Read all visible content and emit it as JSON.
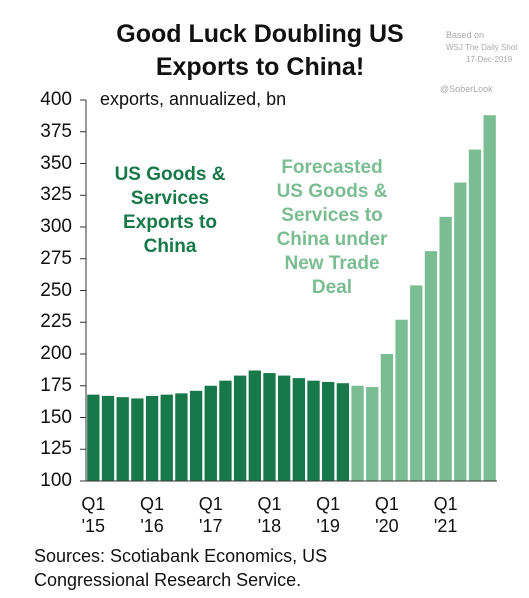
{
  "chart_data": {
    "type": "bar",
    "title": "Good Luck Doubling US Exports to China!",
    "y_label": "exports, annualized, bn",
    "source": "Sources: Scotiabank Economics, US Congressional Research Service.",
    "annotations": [
      "Based on",
      "WSJ The Daily Shot",
      "17-Dec-2019",
      "@SoberLook"
    ],
    "categories": [
      "Q1 '15",
      null,
      null,
      null,
      "Q1 '16",
      null,
      null,
      null,
      "Q1 '17",
      null,
      null,
      null,
      "Q1 '18",
      null,
      null,
      null,
      "Q1 '19",
      null,
      null,
      null,
      "Q1 '20",
      null,
      null,
      null,
      "Q1 '21",
      null,
      null,
      null
    ],
    "series": [
      {
        "name": "US Goods & Services Exports to China",
        "color": "#17784a",
        "values": [
          168,
          167,
          166,
          165,
          167,
          168,
          169,
          171,
          175,
          179,
          183,
          187,
          185,
          183,
          181,
          179,
          178,
          177,
          null,
          null,
          null,
          null,
          null,
          null,
          null,
          null,
          null,
          null
        ]
      },
      {
        "name": "Forecasted US Goods & Services to China under New Trade Deal",
        "color": "#7bbd93",
        "values": [
          null,
          null,
          null,
          null,
          null,
          null,
          null,
          null,
          null,
          null,
          null,
          null,
          null,
          null,
          null,
          null,
          null,
          null,
          175,
          174,
          200,
          227,
          254,
          281,
          308,
          335,
          361,
          388
        ]
      }
    ],
    "ylim": [
      100,
      400
    ],
    "yticks": [
      100,
      125,
      150,
      175,
      200,
      225,
      250,
      275,
      300,
      325,
      350,
      375,
      400
    ],
    "grid": false
  }
}
